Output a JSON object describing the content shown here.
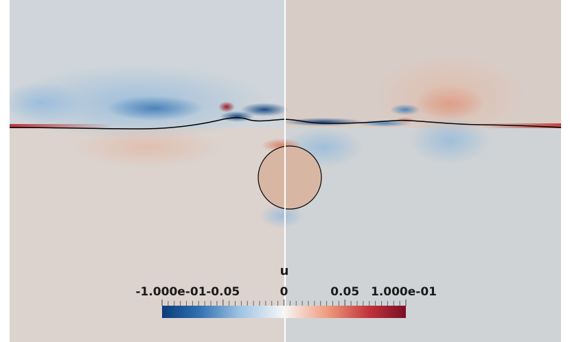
{
  "chart_data": {
    "type": "heatmap",
    "title": "",
    "colorbar": {
      "title": "u",
      "range": [
        -0.1,
        0.1
      ],
      "tick_labels": [
        "-1.000e-01",
        "-0.05",
        "0",
        "0.05",
        "1.000e-01"
      ],
      "tick_values": [
        -0.1,
        -0.05,
        0,
        0.05,
        0.1
      ],
      "colormap": "Cool to Warm (diverging blue-white-red)",
      "colors": {
        "low": "#0b3c7a",
        "mid_low": "#9ec4e4",
        "mid": "#f7f7f7",
        "mid_high": "#ef9a7c",
        "high": "#7a0f26"
      }
    },
    "field": "u",
    "background_value": 0.0,
    "features": [
      {
        "name": "free surface",
        "type": "curve",
        "color": "#000000"
      },
      {
        "name": "circular cylinder",
        "type": "circle",
        "color": "#000000"
      },
      {
        "name": "vertical slice line",
        "type": "line",
        "color": "#ffffff"
      }
    ]
  }
}
